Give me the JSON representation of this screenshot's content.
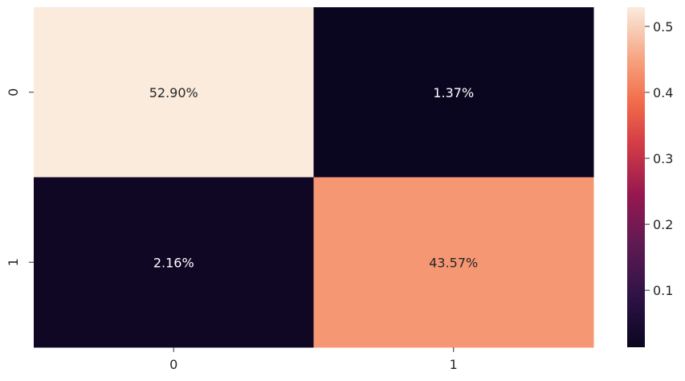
{
  "chart_data": {
    "type": "heatmap",
    "x_categories": [
      "0",
      "1"
    ],
    "y_categories": [
      "0",
      "1"
    ],
    "values": [
      [
        0.529,
        0.0137
      ],
      [
        0.0216,
        0.4357
      ]
    ],
    "annotations": [
      [
        "52.90%",
        "1.37%"
      ],
      [
        "2.16%",
        "43.57%"
      ]
    ],
    "colormap": "rocket",
    "colorbar": {
      "range": [
        0.0137,
        0.529
      ],
      "ticks": [
        0.1,
        0.2,
        0.3,
        0.4,
        0.5
      ],
      "tick_labels": [
        "0.1",
        "0.2",
        "0.3",
        "0.4",
        "0.5"
      ]
    },
    "title": "",
    "xlabel": "",
    "ylabel": "",
    "grid": false,
    "legend": "colorbar right"
  }
}
